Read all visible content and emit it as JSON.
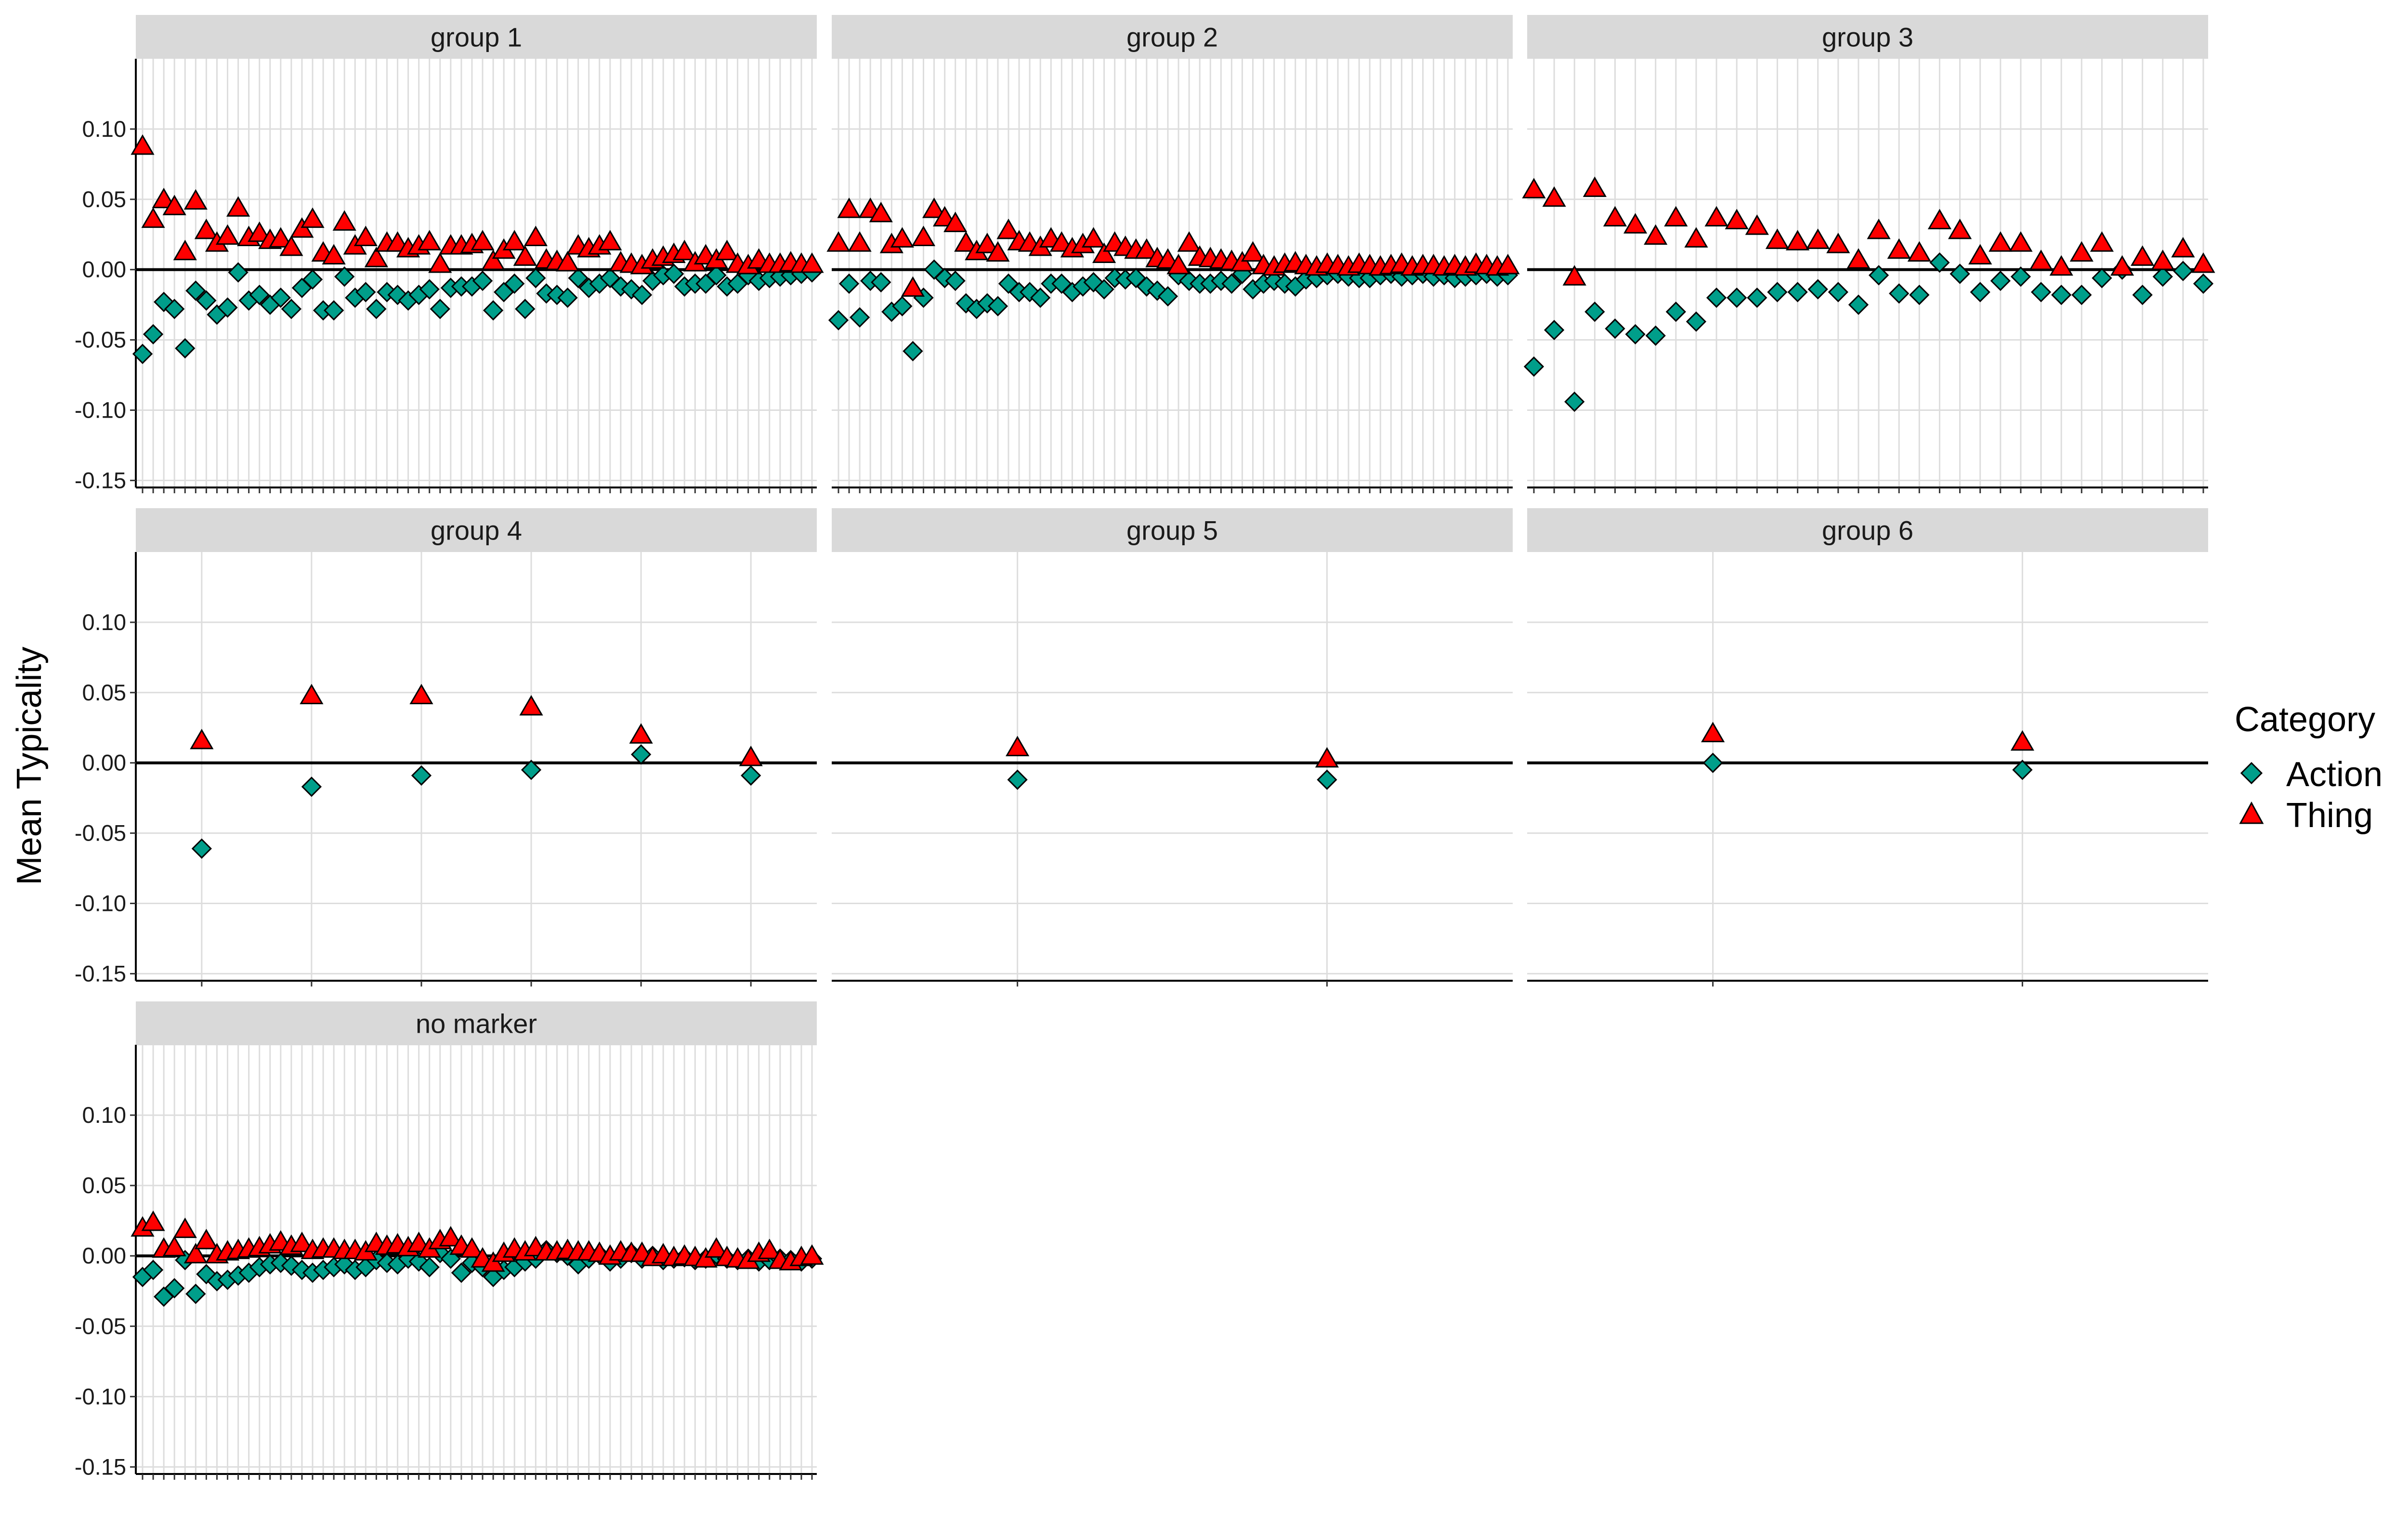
{
  "chart_data": {
    "type": "scatter",
    "ylabel": "Mean Typicality",
    "xlabel": "",
    "ylim": [
      -0.155,
      0.15
    ],
    "y_ticks": [
      0.1,
      0.05,
      0.0,
      -0.05,
      -0.1,
      -0.15
    ],
    "y_tick_labels": [
      "0.10",
      "0.05",
      "0.00",
      "-0.05",
      "-0.10",
      "-0.15"
    ],
    "x_tick_labels_shown": false,
    "reference_line_y": 0,
    "grid": true,
    "legend": {
      "title": "Category",
      "position": "right",
      "entries": [
        {
          "name": "Action",
          "shape": "diamond",
          "color": "#009E8A"
        },
        {
          "name": "Thing",
          "shape": "triangle",
          "color": "#FF0000"
        }
      ]
    },
    "panels": [
      {
        "title": "group 1",
        "n_items": 64,
        "series": [
          {
            "name": "Action",
            "values": [
              -0.06,
              -0.046,
              -0.023,
              -0.028,
              -0.056,
              -0.015,
              -0.022,
              -0.032,
              -0.027,
              -0.002,
              -0.022,
              -0.018,
              -0.025,
              -0.02,
              -0.028,
              -0.013,
              -0.007,
              -0.029,
              -0.029,
              -0.005,
              -0.02,
              -0.016,
              -0.028,
              -0.016,
              -0.018,
              -0.022,
              -0.018,
              -0.014,
              -0.028,
              -0.013,
              -0.012,
              -0.012,
              -0.008,
              -0.029,
              -0.016,
              -0.01,
              -0.028,
              -0.006,
              -0.017,
              -0.018,
              -0.02,
              -0.006,
              -0.013,
              -0.01,
              -0.006,
              -0.012,
              -0.014,
              -0.018,
              -0.008,
              -0.004,
              -0.003,
              -0.012,
              -0.01,
              -0.01,
              -0.004,
              -0.012,
              -0.01,
              -0.004,
              -0.008,
              -0.006,
              -0.005,
              -0.004,
              -0.003,
              -0.002
            ]
          },
          {
            "name": "Thing",
            "values": [
              0.087,
              0.035,
              0.049,
              0.044,
              0.012,
              0.048,
              0.027,
              0.018,
              0.023,
              0.043,
              0.022,
              0.025,
              0.02,
              0.021,
              0.015,
              0.028,
              0.035,
              0.011,
              0.009,
              0.033,
              0.016,
              0.022,
              0.007,
              0.018,
              0.018,
              0.014,
              0.016,
              0.019,
              0.003,
              0.016,
              0.016,
              0.017,
              0.019,
              0.005,
              0.013,
              0.019,
              0.008,
              0.022,
              0.006,
              0.005,
              0.004,
              0.016,
              0.014,
              0.016,
              0.019,
              0.004,
              0.003,
              0.002,
              0.006,
              0.008,
              0.01,
              0.012,
              0.004,
              0.009,
              0.006,
              0.012,
              0.003,
              0.002,
              0.006,
              0.003,
              0.003,
              0.004,
              0.003,
              0.003
            ]
          }
        ]
      },
      {
        "title": "group 2",
        "n_items": 64,
        "series": [
          {
            "name": "Action",
            "values": [
              -0.036,
              -0.01,
              -0.034,
              -0.008,
              -0.009,
              -0.03,
              -0.026,
              -0.058,
              -0.02,
              0.0,
              -0.006,
              -0.008,
              -0.024,
              -0.028,
              -0.024,
              -0.026,
              -0.01,
              -0.016,
              -0.016,
              -0.02,
              -0.01,
              -0.01,
              -0.016,
              -0.012,
              -0.009,
              -0.014,
              -0.006,
              -0.007,
              -0.006,
              -0.012,
              -0.015,
              -0.019,
              -0.004,
              -0.008,
              -0.01,
              -0.01,
              -0.008,
              -0.01,
              -0.003,
              -0.014,
              -0.01,
              -0.008,
              -0.01,
              -0.012,
              -0.007,
              -0.006,
              -0.004,
              -0.003,
              -0.005,
              -0.006,
              -0.006,
              -0.004,
              -0.003,
              -0.005,
              -0.004,
              -0.003,
              -0.005,
              -0.004,
              -0.006,
              -0.005,
              -0.004,
              -0.003,
              -0.005,
              -0.004
            ]
          },
          {
            "name": "Thing",
            "values": [
              0.018,
              0.042,
              0.018,
              0.042,
              0.039,
              0.017,
              0.021,
              -0.014,
              0.022,
              0.042,
              0.036,
              0.032,
              0.018,
              0.012,
              0.017,
              0.011,
              0.027,
              0.019,
              0.018,
              0.015,
              0.021,
              0.018,
              0.014,
              0.017,
              0.021,
              0.01,
              0.018,
              0.015,
              0.013,
              0.013,
              0.007,
              0.006,
              0.002,
              0.018,
              0.008,
              0.007,
              0.006,
              0.005,
              0.004,
              0.011,
              0.002,
              0.001,
              0.003,
              0.004,
              0.002,
              0.001,
              0.003,
              0.002,
              0.001,
              0.003,
              0.002,
              0.001,
              0.002,
              0.003,
              0.001,
              0.002,
              0.002,
              0.001,
              0.002,
              0.001,
              0.003,
              0.002,
              0.001,
              0.002
            ]
          }
        ]
      },
      {
        "title": "group 3",
        "n_items": 34,
        "series": [
          {
            "name": "Action",
            "values": [
              -0.069,
              -0.043,
              -0.094,
              -0.03,
              -0.042,
              -0.046,
              -0.047,
              -0.03,
              -0.037,
              -0.02,
              -0.02,
              -0.02,
              -0.016,
              -0.016,
              -0.014,
              -0.016,
              -0.025,
              -0.004,
              -0.017,
              -0.018,
              0.005,
              -0.003,
              -0.016,
              -0.008,
              -0.005,
              -0.016,
              -0.018,
              -0.018,
              -0.006,
              0.0,
              -0.018,
              -0.005,
              -0.001,
              -0.01
            ]
          },
          {
            "name": "Thing",
            "values": [
              0.056,
              0.05,
              -0.006,
              0.057,
              0.036,
              0.031,
              0.023,
              0.036,
              0.021,
              0.036,
              0.034,
              0.03,
              0.02,
              0.019,
              0.02,
              0.017,
              0.006,
              0.027,
              0.013,
              0.011,
              0.034,
              0.027,
              0.009,
              0.018,
              0.018,
              0.005,
              0.001,
              0.011,
              0.018,
              0.001,
              0.008,
              0.005,
              0.014,
              0.003
            ]
          }
        ]
      },
      {
        "title": "group 4",
        "n_items": 6,
        "series": [
          {
            "name": "Action",
            "values": [
              -0.061,
              -0.017,
              -0.009,
              -0.005,
              0.006,
              -0.009
            ]
          },
          {
            "name": "Thing",
            "values": [
              0.015,
              0.047,
              0.047,
              0.039,
              0.019,
              0.003
            ]
          }
        ]
      },
      {
        "title": "group 5",
        "n_items": 2,
        "series": [
          {
            "name": "Action",
            "values": [
              -0.012,
              -0.012
            ]
          },
          {
            "name": "Thing",
            "values": [
              0.01,
              0.002
            ]
          }
        ]
      },
      {
        "title": "group 6",
        "n_items": 2,
        "series": [
          {
            "name": "Action",
            "values": [
              0.0,
              -0.005
            ]
          },
          {
            "name": "Thing",
            "values": [
              0.02,
              0.014
            ]
          }
        ]
      },
      {
        "title": "no marker",
        "n_items": 64,
        "series": [
          {
            "name": "Action",
            "values": [
              -0.015,
              -0.01,
              -0.029,
              -0.023,
              -0.003,
              -0.027,
              -0.013,
              -0.018,
              -0.017,
              -0.014,
              -0.012,
              -0.008,
              -0.006,
              -0.005,
              -0.007,
              -0.01,
              -0.012,
              -0.01,
              -0.008,
              -0.006,
              -0.01,
              -0.008,
              -0.003,
              -0.005,
              -0.006,
              -0.002,
              -0.004,
              -0.008,
              0.002,
              -0.002,
              -0.012,
              -0.005,
              -0.008,
              -0.015,
              -0.01,
              -0.008,
              -0.004,
              -0.002,
              0.004,
              0.002,
              0.0,
              -0.006,
              -0.002,
              0.001,
              -0.004,
              -0.002,
              0.002,
              -0.002,
              0.0,
              -0.003,
              -0.002,
              -0.001,
              -0.003,
              -0.002,
              0.001,
              -0.002,
              -0.003,
              -0.002,
              -0.004,
              -0.003,
              -0.002,
              -0.003,
              -0.004,
              -0.002
            ]
          },
          {
            "name": "Thing",
            "values": [
              0.019,
              0.023,
              0.004,
              0.005,
              0.018,
              0.0,
              0.01,
              0.0,
              0.002,
              0.003,
              0.004,
              0.005,
              0.007,
              0.009,
              0.006,
              0.008,
              0.003,
              0.004,
              0.004,
              0.003,
              0.003,
              0.002,
              0.008,
              0.006,
              0.007,
              0.005,
              0.008,
              0.004,
              0.01,
              0.012,
              0.006,
              0.004,
              -0.003,
              -0.006,
              0.001,
              0.004,
              0.002,
              0.005,
              0.002,
              0.002,
              0.003,
              0.002,
              0.002,
              0.001,
              -0.001,
              0.002,
              0.001,
              0.001,
              -0.002,
              0.0,
              -0.002,
              -0.001,
              -0.002,
              -0.003,
              0.004,
              -0.002,
              -0.003,
              -0.004,
              0.001,
              0.003,
              -0.004,
              -0.005,
              -0.002,
              -0.001
            ]
          }
        ]
      }
    ]
  }
}
